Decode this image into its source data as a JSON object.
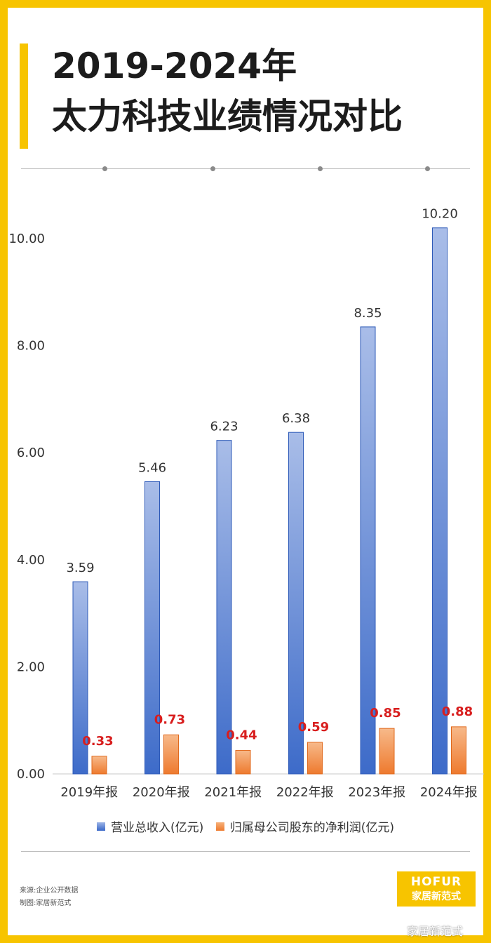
{
  "title": {
    "line1": "2019-2024年",
    "line2": "太力科技业绩情况对比"
  },
  "chart_data": {
    "type": "bar",
    "categories": [
      "2019年报",
      "2020年报",
      "2021年报",
      "2022年报",
      "2023年报",
      "2024年报"
    ],
    "series": [
      {
        "name": "营业总收入(亿元)",
        "values": [
          3.59,
          5.46,
          6.23,
          6.38,
          8.35,
          10.2
        ],
        "labels": [
          "3.59",
          "5.46",
          "6.23",
          "6.38",
          "8.35",
          "10.20"
        ],
        "label_color": "#333333"
      },
      {
        "name": "归属母公司股东的净利润(亿元)",
        "values": [
          0.33,
          0.73,
          0.44,
          0.59,
          0.85,
          0.88
        ],
        "labels": [
          "0.33",
          "0.73",
          "0.44",
          "0.59",
          "0.85",
          "0.88"
        ],
        "label_color": "#d81e1e"
      }
    ],
    "yticks": [
      "0.00",
      "2.00",
      "4.00",
      "6.00",
      "8.00",
      "10.00"
    ],
    "ylim": [
      0,
      10.6
    ],
    "legend_position": "bottom",
    "colors": {
      "revenue_top": "#a9bde8",
      "revenue_bottom": "#3d6bc9",
      "profit_top": "#f7b98a",
      "profit_bottom": "#ee7a2e"
    }
  },
  "legend": {
    "revenue": "营业总收入(亿元)",
    "net_profit": "归属母公司股东的净利润(亿元)"
  },
  "source": {
    "line1": "来源:企业公开数据",
    "line2": "制图:家居新范式"
  },
  "logo": {
    "en": "HOFUR",
    "cn": "家居新范式"
  },
  "watermark": "家居新范式",
  "colors": {
    "accent": "#f7c400"
  }
}
